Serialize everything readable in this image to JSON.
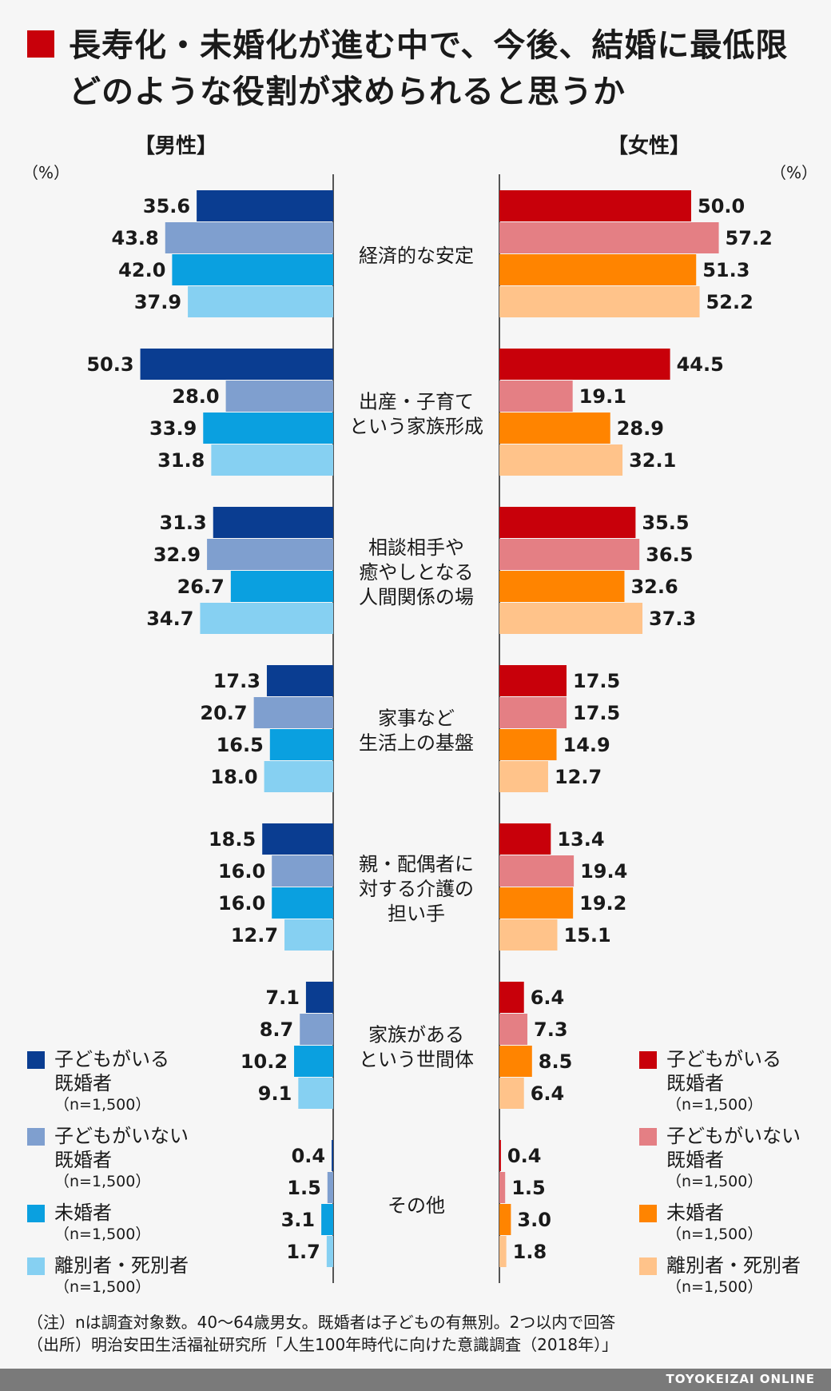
{
  "title": "長寿化・未婚化が進む中で、今後、結婚に最低限どのような役割が求められると思うか",
  "title_line1": "長寿化・未婚化が進む中で、今後、結婚に最低限",
  "title_line2": "どのような役割が求められると思うか",
  "left_label": "【男性】",
  "right_label": "【女性】",
  "unit_left": "（%）",
  "unit_right": "（%）",
  "legend_male": [
    {
      "label1": "子どもがいる",
      "label2": "既婚者",
      "n": "（n=1,500）",
      "color": "#0a3d91"
    },
    {
      "label1": "子どもがいない",
      "label2": "既婚者",
      "n": "（n=1,500）",
      "color": "#7f9fcf"
    },
    {
      "label1": "未婚者",
      "label2": "",
      "n": "（n=1,500）",
      "color": "#0aa0e0"
    },
    {
      "label1": "離別者・死別者",
      "label2": "",
      "n": "（n=1,500）",
      "color": "#86d0f2"
    }
  ],
  "legend_female": [
    {
      "label1": "子どもがいる",
      "label2": "既婚者",
      "n": "（n=1,500）",
      "color": "#c8000a"
    },
    {
      "label1": "子どもがいない",
      "label2": "既婚者",
      "n": "（n=1,500）",
      "color": "#e47f84"
    },
    {
      "label1": "未婚者",
      "label2": "",
      "n": "（n=1,500）",
      "color": "#ff8400"
    },
    {
      "label1": "離別者・死別者",
      "label2": "",
      "n": "（n=1,500）",
      "color": "#ffc38a"
    }
  ],
  "note1": "（注）nは調査対象数。40〜64歳男女。既婚者は子どもの有無別。2つ以内で回答",
  "note2": "（出所）明治安田生活福祉研究所「人生100年時代に向けた意識調査（2018年）」",
  "footer": "TOYOKEIZAI ONLINE",
  "chart_data": {
    "type": "bar",
    "orientation": "horizontal-butterfly",
    "categories": [
      [
        "経済的な安定"
      ],
      [
        "出産・子育て",
        "という家族形成"
      ],
      [
        "相談相手や",
        "癒やしとなる",
        "人間関係の場"
      ],
      [
        "家事など",
        "生活上の基盤"
      ],
      [
        "親・配偶者に",
        "対する介護の",
        "担い手"
      ],
      [
        "家族がある",
        "という世間体"
      ],
      [
        "その他"
      ]
    ],
    "male": {
      "label": "【男性】",
      "series": [
        {
          "name": "子どもがいる既婚者",
          "color": "#0a3d91",
          "values": [
            35.6,
            50.3,
            31.3,
            17.3,
            18.5,
            7.1,
            0.4
          ]
        },
        {
          "name": "子どもがいない既婚者",
          "color": "#7f9fcf",
          "values": [
            43.8,
            28.0,
            32.9,
            20.7,
            16.0,
            8.7,
            1.5
          ]
        },
        {
          "name": "未婚者",
          "color": "#0aa0e0",
          "values": [
            42.0,
            33.9,
            26.7,
            16.5,
            16.0,
            10.2,
            3.1
          ]
        },
        {
          "name": "離別者・死別者",
          "color": "#86d0f2",
          "values": [
            37.9,
            31.8,
            34.7,
            18.0,
            12.7,
            9.1,
            1.7
          ]
        }
      ]
    },
    "female": {
      "label": "【女性】",
      "series": [
        {
          "name": "子どもがいる既婚者",
          "color": "#c8000a",
          "values": [
            50.0,
            44.5,
            35.5,
            17.5,
            13.4,
            6.4,
            0.4
          ]
        },
        {
          "name": "子どもがいない既婚者",
          "color": "#e47f84",
          "values": [
            57.2,
            19.1,
            36.5,
            17.5,
            19.4,
            7.3,
            1.5
          ]
        },
        {
          "name": "未婚者",
          "color": "#ff8400",
          "values": [
            51.3,
            28.9,
            32.6,
            14.9,
            19.2,
            8.5,
            3.0
          ]
        },
        {
          "name": "離別者・死別者",
          "color": "#ffc38a",
          "values": [
            52.2,
            32.1,
            37.3,
            12.7,
            15.1,
            6.4,
            1.8
          ]
        }
      ]
    },
    "xlim": [
      0,
      60
    ],
    "unit": "%"
  }
}
